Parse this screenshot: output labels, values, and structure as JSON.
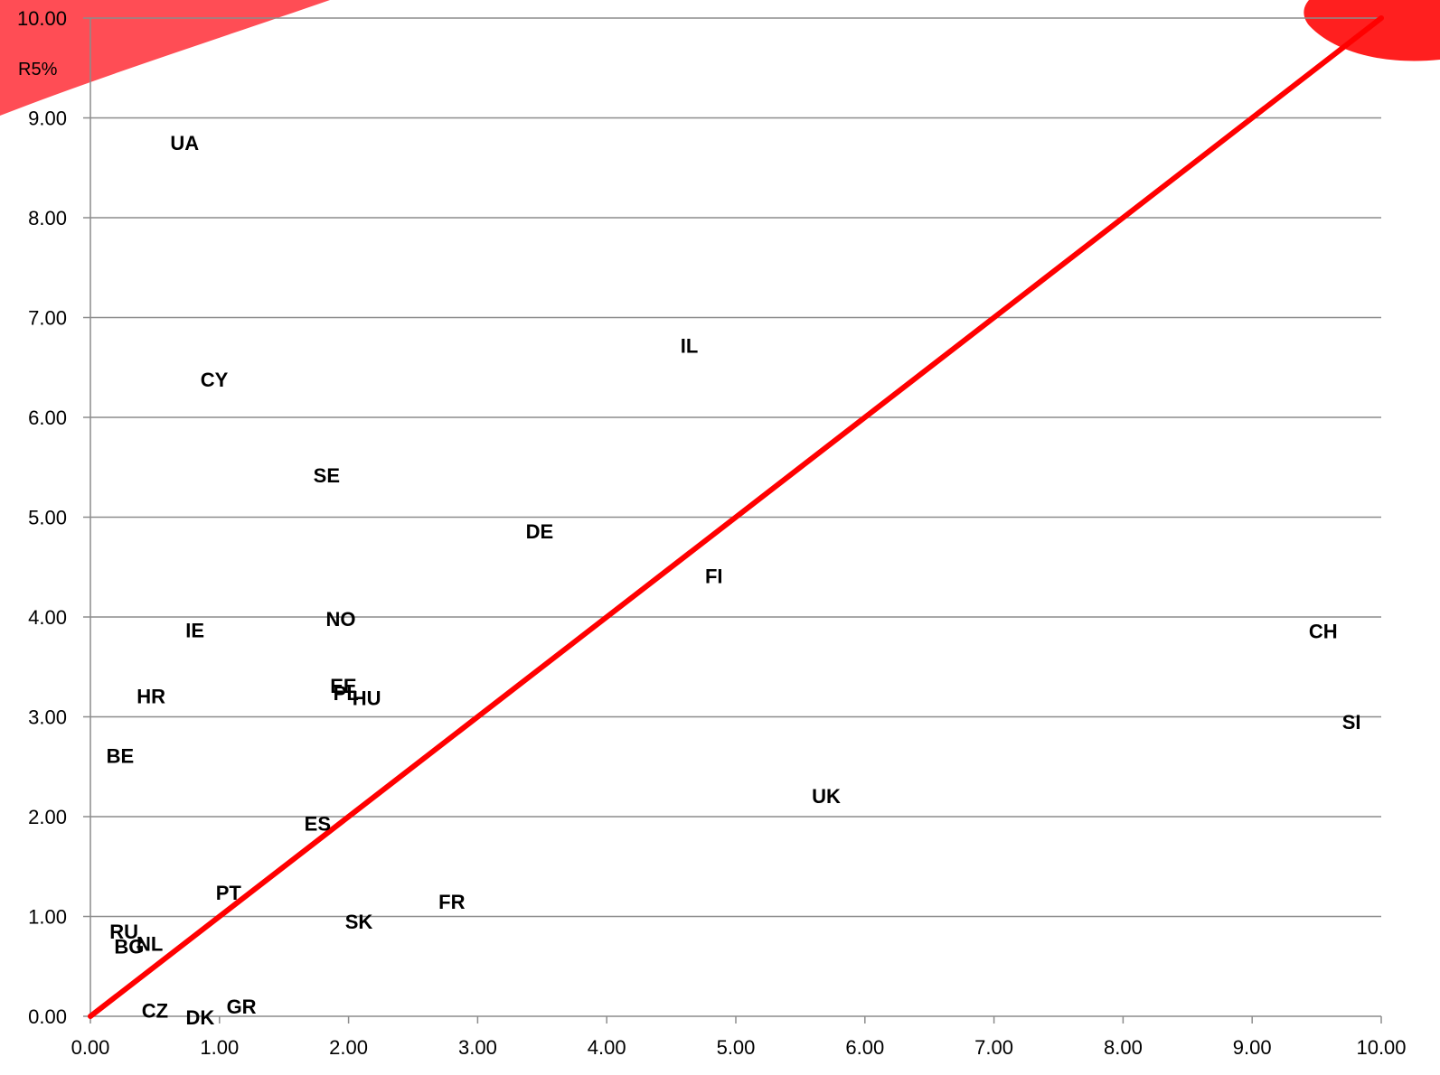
{
  "chart_data": {
    "type": "scatter",
    "title": "",
    "xlabel": "",
    "ylabel": "R5%",
    "xlim": [
      0,
      10
    ],
    "ylim": [
      0,
      10
    ],
    "x_ticks": [
      "0.00",
      "1.00",
      "2.00",
      "3.00",
      "4.00",
      "5.00",
      "6.00",
      "7.00",
      "8.00",
      "9.00",
      "10.00"
    ],
    "y_ticks": [
      "0.00",
      "1.00",
      "2.00",
      "3.00",
      "4.00",
      "5.00",
      "6.00",
      "7.00",
      "8.00",
      "9.00",
      "10.00"
    ],
    "grid": "horizontal",
    "reference_line": {
      "from": [
        0,
        0
      ],
      "to": [
        10,
        10
      ],
      "color": "#ff0000"
    },
    "points": [
      {
        "label": "UA",
        "x": 0.73,
        "y": 8.75
      },
      {
        "label": "IL",
        "x": 4.64,
        "y": 6.72
      },
      {
        "label": "CY",
        "x": 0.96,
        "y": 6.38
      },
      {
        "label": "SE",
        "x": 1.83,
        "y": 5.42
      },
      {
        "label": "DE",
        "x": 3.48,
        "y": 4.86
      },
      {
        "label": "FI",
        "x": 4.83,
        "y": 4.41
      },
      {
        "label": "NO",
        "x": 1.94,
        "y": 3.98
      },
      {
        "label": "IE",
        "x": 0.81,
        "y": 3.87
      },
      {
        "label": "CH",
        "x": 9.55,
        "y": 3.86
      },
      {
        "label": "EE",
        "x": 1.96,
        "y": 3.31
      },
      {
        "label": "PL",
        "x": 1.98,
        "y": 3.24
      },
      {
        "label": "HU",
        "x": 2.14,
        "y": 3.19
      },
      {
        "label": "HR",
        "x": 0.47,
        "y": 3.21
      },
      {
        "label": "SI",
        "x": 9.77,
        "y": 2.95
      },
      {
        "label": "BE",
        "x": 0.23,
        "y": 2.61
      },
      {
        "label": "UK",
        "x": 5.7,
        "y": 2.21
      },
      {
        "label": "ES",
        "x": 1.76,
        "y": 1.93
      },
      {
        "label": "PT",
        "x": 1.07,
        "y": 1.24
      },
      {
        "label": "FR",
        "x": 2.8,
        "y": 1.15
      },
      {
        "label": "SK",
        "x": 2.08,
        "y": 0.95
      },
      {
        "label": "RU",
        "x": 0.26,
        "y": 0.85
      },
      {
        "label": "NL",
        "x": 0.46,
        "y": 0.73
      },
      {
        "label": "BG",
        "x": 0.3,
        "y": 0.7
      },
      {
        "label": "CZ",
        "x": 0.5,
        "y": 0.06
      },
      {
        "label": "GR",
        "x": 1.17,
        "y": 0.1
      },
      {
        "label": "DK",
        "x": 0.85,
        "y": -0.01
      }
    ]
  },
  "colors": {
    "reference_line": "#ff0000",
    "banner": "#ff4d55",
    "logo": "#ff1f1f",
    "grid": "#8c8c8c"
  }
}
